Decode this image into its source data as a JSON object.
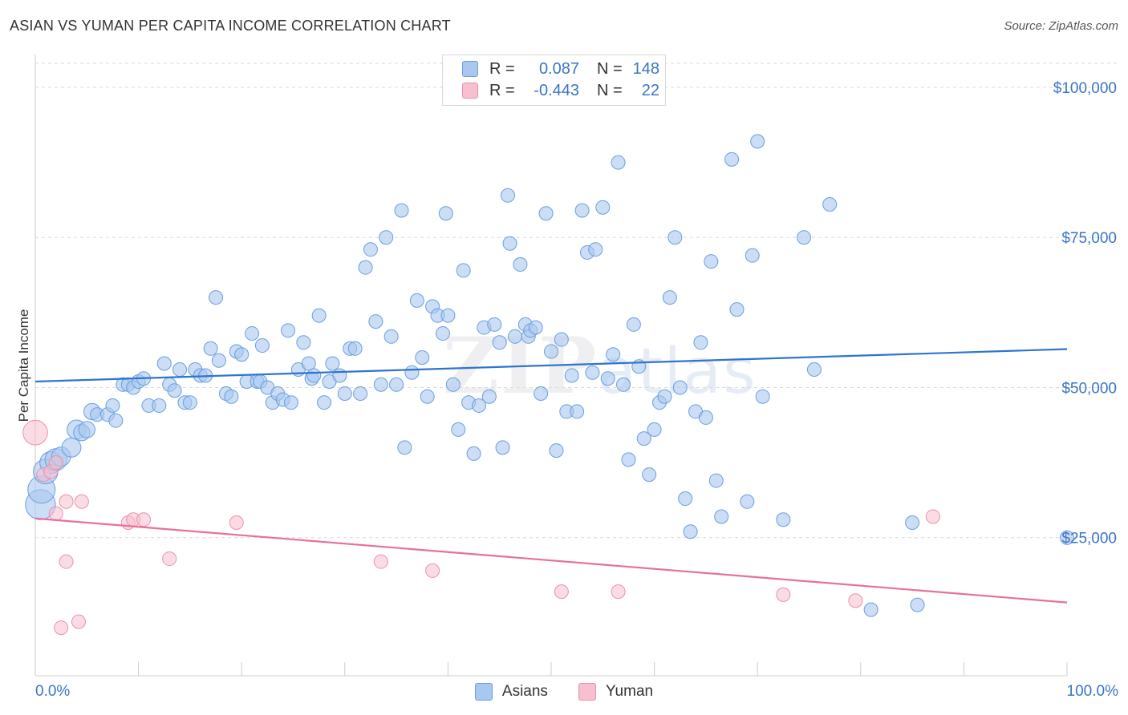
{
  "title": "ASIAN VS YUMAN PER CAPITA INCOME CORRELATION CHART",
  "source": "Source: ZipAtlas.com",
  "watermark": {
    "part1": "ZIP",
    "part2": "atlas"
  },
  "legend": {
    "rows": [
      {
        "r_label": "R =",
        "r_value": "0.087",
        "n_label": "N =",
        "n_value": "148"
      },
      {
        "r_label": "R =",
        "r_value": "-0.443",
        "n_label": "N =",
        "n_value": "22"
      }
    ]
  },
  "bottom_legend": {
    "asians": "Asians",
    "yuman": "Yuman"
  },
  "x_axis": {
    "left_label": "0.0%",
    "right_label": "100.0%"
  },
  "y_axis_label": "Per Capita Income",
  "colors": {
    "asian_fill": "#a9c8ef",
    "asian_stroke": "#6a9ee0",
    "asian_line": "#2f74cf",
    "yuman_fill": "#f7bfd0",
    "yuman_stroke": "#ec8fab",
    "yuman_line": "#e8709a",
    "tick_text": "#3a75c4",
    "grid": "#d9d9d9"
  },
  "chart_data": {
    "type": "scatter",
    "title": "ASIAN VS YUMAN PER CAPITA INCOME CORRELATION CHART",
    "xlabel": "",
    "ylabel": "Per Capita Income",
    "xlim": [
      0,
      100
    ],
    "ylim": [
      2000,
      104000
    ],
    "y_ticks": [
      25000,
      50000,
      75000,
      100000
    ],
    "y_tick_labels": [
      "$25,000",
      "$50,000",
      "$75,000",
      "$100,000"
    ],
    "x_tick_labels": [
      "0.0%",
      "100.0%"
    ],
    "grid": true,
    "legend_position": "top-center",
    "series": [
      {
        "name": "Asians",
        "r": 0.087,
        "n": 148,
        "trend": {
          "x": [
            0,
            100
          ],
          "y": [
            51000,
            56400
          ]
        },
        "points": [
          [
            0.5,
            30500,
            2.2
          ],
          [
            0.6,
            33000,
            2.0
          ],
          [
            1.0,
            36000,
            1.8
          ],
          [
            1.5,
            37500,
            1.6
          ],
          [
            2.0,
            38000,
            1.6
          ],
          [
            2.5,
            38500,
            1.4
          ],
          [
            3.5,
            40000,
            1.4
          ],
          [
            4.0,
            43000,
            1.4
          ],
          [
            4.5,
            42500,
            1.2
          ],
          [
            5.0,
            43000,
            1.2
          ],
          [
            5.5,
            46000,
            1.2
          ],
          [
            6.0,
            45500,
            1.0
          ],
          [
            7.0,
            45500,
            1.0
          ],
          [
            7.5,
            47000,
            1.0
          ],
          [
            7.8,
            44500,
            1.0
          ],
          [
            8.5,
            50500,
            1.0
          ],
          [
            9.0,
            50500,
            1.0
          ],
          [
            9.5,
            50000,
            1.0
          ],
          [
            10.0,
            51000,
            1.0
          ],
          [
            10.5,
            51500,
            1.0
          ],
          [
            11.0,
            47000,
            1.0
          ],
          [
            12.0,
            47000,
            1.0
          ],
          [
            12.5,
            54000,
            1.0
          ],
          [
            13.0,
            50500,
            1.0
          ],
          [
            13.5,
            49500,
            1.0
          ],
          [
            14.0,
            53000,
            1.0
          ],
          [
            14.5,
            47500,
            1.0
          ],
          [
            15.0,
            47500,
            1.0
          ],
          [
            15.5,
            53000,
            1.0
          ],
          [
            16.0,
            52000,
            1.0
          ],
          [
            16.5,
            52000,
            1.0
          ],
          [
            17.0,
            56500,
            1.0
          ],
          [
            17.5,
            65000,
            1.0
          ],
          [
            17.8,
            54500,
            1.0
          ],
          [
            18.5,
            49000,
            1.0
          ],
          [
            19.0,
            48500,
            1.0
          ],
          [
            19.5,
            56000,
            1.0
          ],
          [
            20.0,
            55500,
            1.0
          ],
          [
            20.5,
            51000,
            1.0
          ],
          [
            21.0,
            59000,
            1.0
          ],
          [
            21.5,
            51000,
            1.0
          ],
          [
            21.8,
            51000,
            1.0
          ],
          [
            22.0,
            57000,
            1.0
          ],
          [
            22.5,
            50000,
            1.0
          ],
          [
            23.0,
            47500,
            1.0
          ],
          [
            23.5,
            49000,
            1.0
          ],
          [
            24.0,
            48000,
            1.0
          ],
          [
            24.5,
            59500,
            1.0
          ],
          [
            24.8,
            47500,
            1.0
          ],
          [
            25.5,
            53000,
            1.0
          ],
          [
            26.0,
            57500,
            1.0
          ],
          [
            26.5,
            54000,
            1.0
          ],
          [
            26.8,
            51500,
            1.0
          ],
          [
            27.0,
            52000,
            1.0
          ],
          [
            27.5,
            62000,
            1.0
          ],
          [
            28.0,
            47500,
            1.0
          ],
          [
            28.5,
            51000,
            1.0
          ],
          [
            28.8,
            54000,
            1.0
          ],
          [
            29.5,
            52000,
            1.0
          ],
          [
            30.0,
            49000,
            1.0
          ],
          [
            30.5,
            56500,
            1.0
          ],
          [
            31.0,
            56500,
            1.0
          ],
          [
            31.5,
            49000,
            1.0
          ],
          [
            32.0,
            70000,
            1.0
          ],
          [
            32.5,
            73000,
            1.0
          ],
          [
            33.0,
            61000,
            1.0
          ],
          [
            33.5,
            50500,
            1.0
          ],
          [
            34.0,
            75000,
            1.0
          ],
          [
            34.5,
            58500,
            1.0
          ],
          [
            35.0,
            50500,
            1.0
          ],
          [
            35.5,
            79500,
            1.0
          ],
          [
            35.8,
            40000,
            1.0
          ],
          [
            36.5,
            52500,
            1.0
          ],
          [
            37.0,
            64500,
            1.0
          ],
          [
            37.5,
            55000,
            1.0
          ],
          [
            38.0,
            48500,
            1.0
          ],
          [
            38.5,
            63500,
            1.0
          ],
          [
            39.0,
            62000,
            1.0
          ],
          [
            39.5,
            59000,
            1.0
          ],
          [
            39.8,
            79000,
            1.0
          ],
          [
            40.0,
            62000,
            1.0
          ],
          [
            40.5,
            50500,
            1.0
          ],
          [
            41.0,
            43000,
            1.0
          ],
          [
            41.5,
            69500,
            1.0
          ],
          [
            42.0,
            47500,
            1.0
          ],
          [
            42.5,
            39000,
            1.0
          ],
          [
            43.0,
            47000,
            1.0
          ],
          [
            43.5,
            60000,
            1.0
          ],
          [
            44.0,
            48500,
            1.0
          ],
          [
            44.5,
            60500,
            1.0
          ],
          [
            45.0,
            57500,
            1.0
          ],
          [
            45.3,
            40000,
            1.0
          ],
          [
            45.8,
            82000,
            1.0
          ],
          [
            46.0,
            74000,
            1.0
          ],
          [
            46.5,
            58500,
            1.0
          ],
          [
            47.0,
            70500,
            1.0
          ],
          [
            47.5,
            60500,
            1.0
          ],
          [
            47.8,
            58500,
            1.0
          ],
          [
            48.0,
            59500,
            1.0
          ],
          [
            48.5,
            60000,
            1.0
          ],
          [
            49.0,
            49000,
            1.0
          ],
          [
            49.5,
            79000,
            1.0
          ],
          [
            50.0,
            56000,
            1.0
          ],
          [
            50.5,
            39500,
            1.0
          ],
          [
            51.0,
            58000,
            1.0
          ],
          [
            51.5,
            46000,
            1.0
          ],
          [
            52.0,
            52000,
            1.0
          ],
          [
            52.5,
            46000,
            1.0
          ],
          [
            53.0,
            79500,
            1.0
          ],
          [
            53.5,
            72500,
            1.0
          ],
          [
            54.0,
            52500,
            1.0
          ],
          [
            54.3,
            73000,
            1.0
          ],
          [
            55.0,
            80000,
            1.0
          ],
          [
            55.5,
            51500,
            1.0
          ],
          [
            56.0,
            55500,
            1.0
          ],
          [
            56.5,
            87500,
            1.0
          ],
          [
            57.0,
            50500,
            1.0
          ],
          [
            57.5,
            38000,
            1.0
          ],
          [
            58.0,
            60500,
            1.0
          ],
          [
            58.5,
            53500,
            1.0
          ],
          [
            59.0,
            41500,
            1.0
          ],
          [
            59.5,
            35500,
            1.0
          ],
          [
            60.0,
            43000,
            1.0
          ],
          [
            60.5,
            47500,
            1.0
          ],
          [
            61.0,
            48500,
            1.0
          ],
          [
            61.5,
            65000,
            1.0
          ],
          [
            62.0,
            75000,
            1.0
          ],
          [
            62.5,
            50000,
            1.0
          ],
          [
            63.0,
            31500,
            1.0
          ],
          [
            63.5,
            26000,
            1.0
          ],
          [
            64.0,
            46000,
            1.0
          ],
          [
            64.5,
            57500,
            1.0
          ],
          [
            65.0,
            45000,
            1.0
          ],
          [
            65.5,
            71000,
            1.0
          ],
          [
            66.0,
            34500,
            1.0
          ],
          [
            66.5,
            28500,
            1.0
          ],
          [
            67.5,
            88000,
            1.0
          ],
          [
            68.0,
            63000,
            1.0
          ],
          [
            69.0,
            31000,
            1.0
          ],
          [
            69.5,
            72000,
            1.0
          ],
          [
            70.0,
            91000,
            1.0
          ],
          [
            70.5,
            48500,
            1.0
          ],
          [
            72.5,
            28000,
            1.0
          ],
          [
            74.5,
            75000,
            1.0
          ],
          [
            75.5,
            53000,
            1.0
          ],
          [
            77.0,
            80500,
            1.0
          ],
          [
            81.0,
            13000,
            1.0
          ],
          [
            85.0,
            27500,
            1.0
          ],
          [
            85.5,
            13800,
            1.0
          ],
          [
            100.0,
            25000,
            1.0
          ]
        ]
      },
      {
        "name": "Yuman",
        "r": -0.443,
        "n": 22,
        "trend": {
          "x": [
            0,
            100
          ],
          "y": [
            28200,
            14200
          ]
        },
        "points": [
          [
            0.0,
            42500,
            1.8
          ],
          [
            0.8,
            35500,
            1.0
          ],
          [
            1.5,
            36000,
            1.0
          ],
          [
            2.0,
            37500,
            1.0
          ],
          [
            2.0,
            29000,
            1.0
          ],
          [
            3.0,
            31000,
            1.0
          ],
          [
            3.0,
            21000,
            1.0
          ],
          [
            4.5,
            31000,
            1.0
          ],
          [
            2.5,
            10000,
            1.0
          ],
          [
            4.2,
            11000,
            1.0
          ],
          [
            9.0,
            27500,
            1.0
          ],
          [
            9.5,
            28000,
            1.0
          ],
          [
            10.5,
            28000,
            1.0
          ],
          [
            13.0,
            21500,
            1.0
          ],
          [
            19.5,
            27500,
            1.0
          ],
          [
            33.5,
            21000,
            1.0
          ],
          [
            38.5,
            19500,
            1.0
          ],
          [
            51.0,
            16000,
            1.0
          ],
          [
            56.5,
            16000,
            1.0
          ],
          [
            72.5,
            15500,
            1.0
          ],
          [
            79.5,
            14500,
            1.0
          ],
          [
            87.0,
            28500,
            1.0
          ]
        ]
      }
    ]
  }
}
